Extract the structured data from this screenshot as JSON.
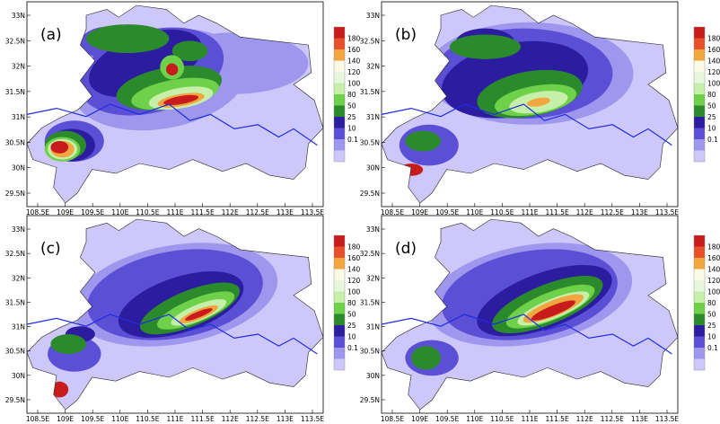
{
  "panels": [
    {
      "label": "(a)",
      "variant": 0
    },
    {
      "label": "(b)",
      "variant": 1
    },
    {
      "label": "(c)",
      "variant": 2
    },
    {
      "label": "(d)",
      "variant": 3
    }
  ],
  "axes": {
    "lat_ticks": [
      "33N",
      "32.5N",
      "32N",
      "31.5N",
      "31N",
      "30.5N",
      "30N",
      "29.5N"
    ],
    "lon_ticks": [
      "108.5E",
      "109E",
      "109.5E",
      "110E",
      "110.5E",
      "111E",
      "111.5E",
      "112E",
      "112.5E",
      "113E",
      "113.5E"
    ]
  },
  "colorbar": {
    "labels": [
      "180",
      "160",
      "140",
      "120",
      "100",
      "80",
      "50",
      "25",
      "10",
      "0.1"
    ],
    "colors": [
      "#c81b1b",
      "#e8502a",
      "#f2a640",
      "#fbfbe5",
      "#e7f7dd",
      "#c6efaa",
      "#6fd04a",
      "#2b8a2b",
      "#2c1ca0",
      "#5b4fd6",
      "#9f96ee",
      "#cec8fa"
    ]
  },
  "map_colors": {
    "outside": "#ffffff",
    "province_fill": "#cec8fa",
    "level_10": "#9f96ee",
    "level_25": "#5b4fd6",
    "level_50": "#2c1ca0",
    "level_80": "#2b8a2b",
    "level_100": "#6fd04a",
    "level_120": "#c6efaa",
    "level_140": "#fbfbe5",
    "level_160": "#f2a640",
    "level_180": "#c81b1b",
    "blue_line": "#1f2de0",
    "border_line": "#222222"
  }
}
